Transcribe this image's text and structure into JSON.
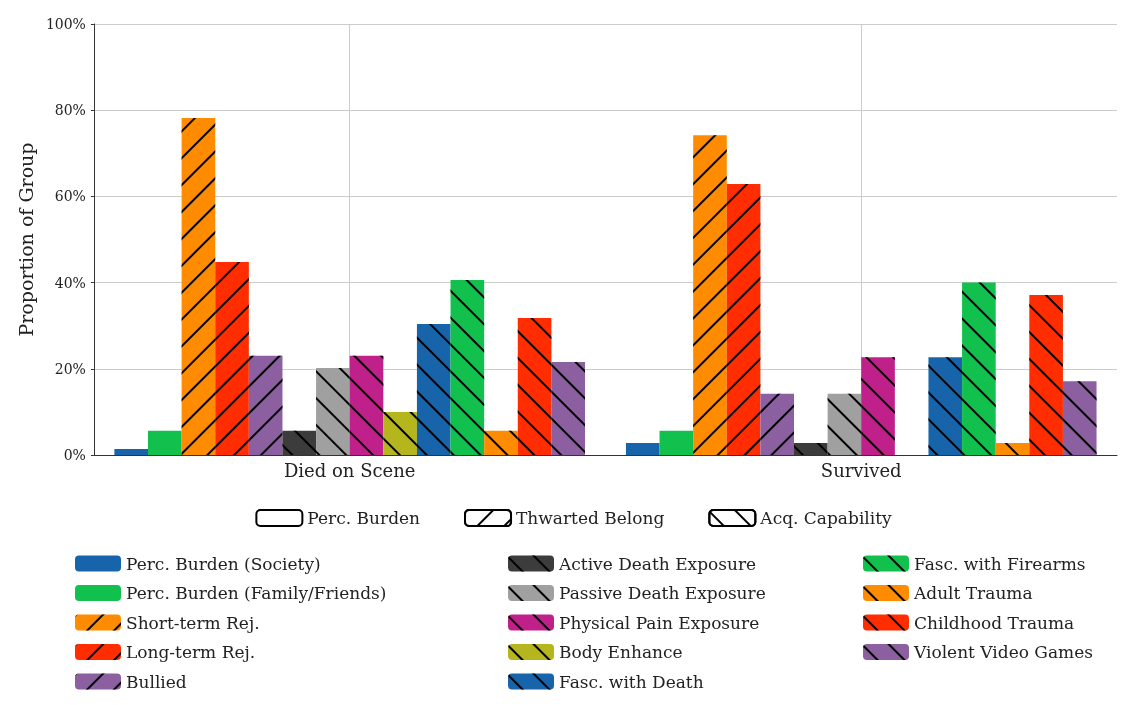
{
  "chart_data": {
    "type": "bar",
    "ylabel": "Proportion of Group",
    "categories": [
      "Died on Scene",
      "Survived"
    ],
    "ylim": [
      0,
      100
    ],
    "yticks": [
      {
        "value": 0,
        "label": "0%"
      },
      {
        "value": 20,
        "label": "20%"
      },
      {
        "value": 40,
        "label": "40%"
      },
      {
        "value": 60,
        "label": "60%"
      },
      {
        "value": 80,
        "label": "80%"
      },
      {
        "value": 100,
        "label": "100%"
      }
    ],
    "grid": true,
    "legend": "bottom",
    "series": [
      {
        "name": "Perc. Burden",
        "values": [
          null,
          null
        ]
      },
      {
        "name": "Thwarted Belong",
        "values": [
          null,
          null
        ]
      },
      {
        "name": "Acq. Capability",
        "values": [
          null,
          null
        ]
      },
      {
        "name": "Perc. Burden (Society)",
        "color": "#1764ab",
        "values": [
          1.4,
          2.8
        ]
      },
      {
        "name": "Perc. Burden (Family/Friends)",
        "color": "#12c04d",
        "values": [
          5.6,
          5.6
        ]
      },
      {
        "name": "Short-term Rej.",
        "color": "#ff8c00",
        "values": [
          78.2,
          74.2
        ]
      },
      {
        "name": "Long-term Rej.",
        "color": "#ff2d00",
        "values": [
          44.8,
          62.9
        ]
      },
      {
        "name": "Bullied",
        "color": "#8b5fa0",
        "values": [
          23,
          14.2
        ]
      },
      {
        "name": "Active Death Exposure",
        "color": "#3c3c3c",
        "values": [
          5.6,
          2.8
        ]
      },
      {
        "name": "Passive Death Exposure",
        "color": "#a0a0a0",
        "values": [
          20.2,
          14.2
        ]
      },
      {
        "name": "Physical Pain Exposure",
        "color": "#c0208a",
        "values": [
          23,
          22.7
        ]
      },
      {
        "name": "Body Enhance",
        "color": "#b5b51e",
        "values": [
          10,
          0
        ]
      },
      {
        "name": "Fasc. with Death",
        "color": "#1764ab",
        "values": [
          30.4,
          22.7
        ]
      },
      {
        "name": "Fasc. with Firearms",
        "color": "#12c04d",
        "values": [
          40.6,
          40
        ]
      },
      {
        "name": "Adult Trauma",
        "color": "#ff8c00",
        "values": [
          5.6,
          2.8
        ]
      },
      {
        "name": "Childhood Trauma",
        "color": "#ff2d00",
        "values": [
          31.8,
          37.1
        ]
      },
      {
        "name": "Violent Video Games",
        "color": "#8b5fa0",
        "values": [
          21.6,
          17.1
        ]
      }
    ]
  }
}
